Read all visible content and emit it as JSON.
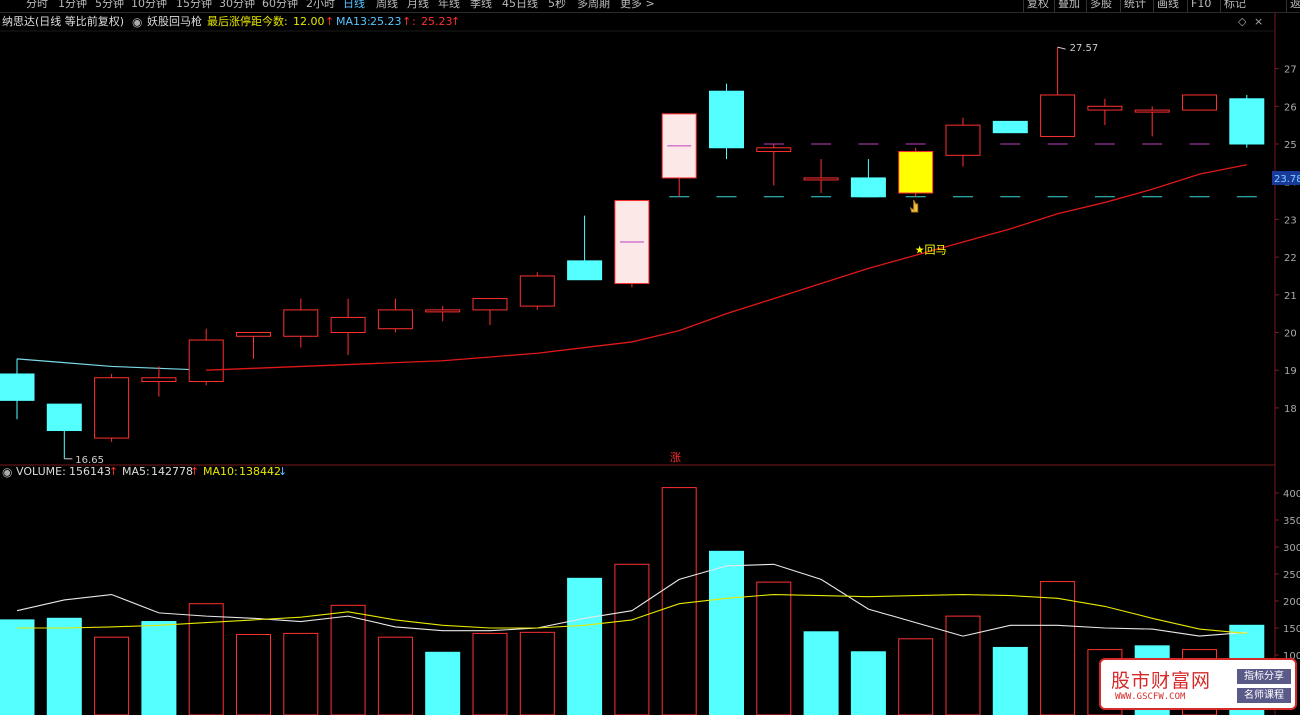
{
  "toolbar": {
    "periods": [
      "分时",
      "1分钟",
      "5分钟",
      "10分钟",
      "15分钟",
      "30分钟",
      "60分钟",
      "2小时",
      "日线",
      "周线",
      "月线",
      "年线",
      "季线",
      "45日线",
      "5秒",
      "多周期",
      "更多 >"
    ],
    "active": "日线",
    "right_buttons": [
      "复权",
      "叠加",
      "多股",
      "统计",
      "画线",
      "F10",
      "标记",
      "返"
    ]
  },
  "header": {
    "stock": "纳思达(日线 等比前复权)",
    "indicator": "妖股回马枪",
    "item1_label": "最后涨停距今数:",
    "item1_value": "12.00",
    "item2_label": "MA13:",
    "item2_value": "25.23",
    "item3_label": ":",
    "item3_value": "25.23",
    "up_arrow": "↑"
  },
  "volume_header": {
    "label": "VOLUME:",
    "value": "156143",
    "ma5_label": "MA5:",
    "ma5_value": "142778",
    "ma10_label": "MA10:",
    "ma10_value": "138442",
    "up_arrow": "↑",
    "down_arrow": "↓"
  },
  "annotations": {
    "high_label": "27.57",
    "low_label": "16.65",
    "signal_label": "★回马",
    "zhang_label": "涨"
  },
  "price_axis": {
    "labels": [
      "26",
      "25",
      "24",
      "23",
      "22",
      "21",
      "20",
      "19",
      "18",
      "27"
    ],
    "current_price": "23.78"
  },
  "volume_axis": {
    "labels": [
      "400",
      "350",
      "300",
      "250",
      "200",
      "150",
      "100"
    ]
  },
  "chart_data": [
    {
      "type": "candlestick",
      "title": "纳思达(日线 等比前复权)",
      "ylim": [
        17,
        28
      ],
      "candles": [
        {
          "o": 18.9,
          "h": 19.3,
          "l": 17.7,
          "c": 18.2
        },
        {
          "o": 18.1,
          "h": 18.1,
          "l": 16.65,
          "c": 17.4
        },
        {
          "o": 17.2,
          "h": 18.9,
          "l": 17.1,
          "c": 18.8
        },
        {
          "o": 18.7,
          "h": 19.1,
          "l": 18.3,
          "c": 18.8
        },
        {
          "o": 18.7,
          "h": 20.1,
          "l": 18.6,
          "c": 19.8
        },
        {
          "o": 19.9,
          "h": 20.0,
          "l": 19.3,
          "c": 20.0
        },
        {
          "o": 19.9,
          "h": 20.9,
          "l": 19.6,
          "c": 20.6
        },
        {
          "o": 20.0,
          "h": 20.9,
          "l": 19.4,
          "c": 20.4
        },
        {
          "o": 20.1,
          "h": 20.9,
          "l": 20.0,
          "c": 20.6
        },
        {
          "o": 20.6,
          "h": 20.7,
          "l": 20.3,
          "c": 20.6
        },
        {
          "o": 20.6,
          "h": 20.9,
          "l": 20.2,
          "c": 20.9
        },
        {
          "o": 20.7,
          "h": 21.6,
          "l": 20.6,
          "c": 21.5
        },
        {
          "o": 21.9,
          "h": 23.1,
          "l": 21.4,
          "c": 21.4
        },
        {
          "o": 21.3,
          "h": 23.5,
          "l": 21.2,
          "c": 23.5
        },
        {
          "o": 24.1,
          "h": 25.8,
          "l": 23.6,
          "c": 25.8
        },
        {
          "o": 26.4,
          "h": 26.6,
          "l": 24.6,
          "c": 24.9
        },
        {
          "o": 24.8,
          "h": 25.0,
          "l": 23.9,
          "c": 24.9
        },
        {
          "o": 24.1,
          "h": 24.6,
          "l": 23.7,
          "c": 24.1
        },
        {
          "o": 24.1,
          "h": 24.6,
          "l": 23.6,
          "c": 23.6
        },
        {
          "o": 23.7,
          "h": 24.9,
          "l": 23.6,
          "c": 24.8
        },
        {
          "o": 24.7,
          "h": 25.7,
          "l": 24.4,
          "c": 25.5
        },
        {
          "o": 25.6,
          "h": 25.6,
          "l": 25.3,
          "c": 25.3
        },
        {
          "o": 25.2,
          "h": 27.57,
          "l": 25.2,
          "c": 26.3
        },
        {
          "o": 25.9,
          "h": 26.2,
          "l": 25.5,
          "c": 26.0
        },
        {
          "o": 25.9,
          "h": 26.0,
          "l": 25.2,
          "c": 25.9
        },
        {
          "o": 25.9,
          "h": 26.3,
          "l": 25.9,
          "c": 26.3
        },
        {
          "o": 26.2,
          "h": 26.3,
          "l": 24.9,
          "c": 25.0
        }
      ],
      "signal_candle_index": 19,
      "ma13": [
        null,
        null,
        null,
        null,
        19.0,
        19.05,
        19.1,
        19.15,
        19.2,
        19.25,
        19.35,
        19.45,
        19.6,
        19.75,
        20.05,
        20.5,
        20.9,
        21.3,
        21.7,
        22.05,
        22.4,
        22.75,
        23.15,
        23.45,
        23.8,
        24.2,
        24.45
      ],
      "ma_early": [
        19.3,
        19.2,
        19.1,
        19.05,
        19.0
      ],
      "ref_levels": {
        "upper": 25.0,
        "lower": 23.6
      }
    },
    {
      "type": "bar",
      "title": "VOLUME",
      "ylim": [
        95,
        420
      ],
      "values": [
        165,
        168,
        133,
        162,
        195,
        138,
        140,
        192,
        133,
        105,
        140,
        142,
        242,
        268,
        410,
        292,
        235,
        143,
        106,
        130,
        172,
        114,
        236,
        110,
        117,
        110,
        155
      ],
      "ma5": [
        182,
        202,
        212,
        178,
        172,
        168,
        162,
        172,
        152,
        145,
        145,
        150,
        168,
        182,
        240,
        265,
        268,
        240,
        185,
        160,
        135,
        155,
        155,
        150,
        148,
        135,
        142
      ],
      "ma10": [
        150,
        150,
        152,
        155,
        160,
        165,
        170,
        180,
        165,
        155,
        150,
        150,
        155,
        165,
        195,
        205,
        212,
        210,
        208,
        210,
        212,
        210,
        205,
        190,
        168,
        148,
        140
      ]
    }
  ]
}
